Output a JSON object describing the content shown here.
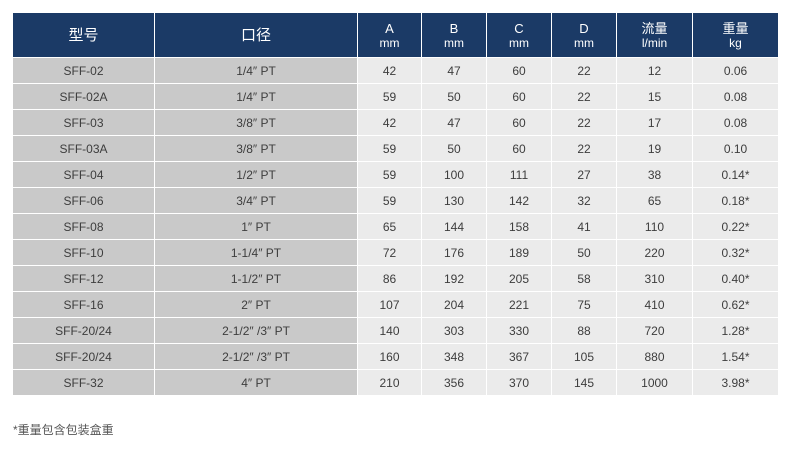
{
  "headers": {
    "model": "型号",
    "bore": "口径",
    "a": {
      "label": "A",
      "unit": "mm"
    },
    "b": {
      "label": "B",
      "unit": "mm"
    },
    "c": {
      "label": "C",
      "unit": "mm"
    },
    "d": {
      "label": "D",
      "unit": "mm"
    },
    "flow": {
      "label": "流量",
      "unit": "l/min"
    },
    "weight": {
      "label": "重量",
      "unit": "kg"
    }
  },
  "rows": [
    {
      "model": "SFF-02",
      "bore": "1/4″ PT",
      "a": "42",
      "b": "47",
      "c": "60",
      "d": "22",
      "flow": "12",
      "weight": "0.06"
    },
    {
      "model": "SFF-02A",
      "bore": "1/4″ PT",
      "a": "59",
      "b": "50",
      "c": "60",
      "d": "22",
      "flow": "15",
      "weight": "0.08"
    },
    {
      "model": "SFF-03",
      "bore": "3/8″ PT",
      "a": "42",
      "b": "47",
      "c": "60",
      "d": "22",
      "flow": "17",
      "weight": "0.08"
    },
    {
      "model": "SFF-03A",
      "bore": "3/8″ PT",
      "a": "59",
      "b": "50",
      "c": "60",
      "d": "22",
      "flow": "19",
      "weight": "0.10"
    },
    {
      "model": "SFF-04",
      "bore": "1/2″ PT",
      "a": "59",
      "b": "100",
      "c": "111",
      "d": "27",
      "flow": "38",
      "weight": "0.14*"
    },
    {
      "model": "SFF-06",
      "bore": "3/4″ PT",
      "a": "59",
      "b": "130",
      "c": "142",
      "d": "32",
      "flow": "65",
      "weight": "0.18*"
    },
    {
      "model": "SFF-08",
      "bore": "1″ PT",
      "a": "65",
      "b": "144",
      "c": "158",
      "d": "41",
      "flow": "110",
      "weight": "0.22*"
    },
    {
      "model": "SFF-10",
      "bore": "1-1/4″ PT",
      "a": "72",
      "b": "176",
      "c": "189",
      "d": "50",
      "flow": "220",
      "weight": "0.32*"
    },
    {
      "model": "SFF-12",
      "bore": "1-1/2″ PT",
      "a": "86",
      "b": "192",
      "c": "205",
      "d": "58",
      "flow": "310",
      "weight": "0.40*"
    },
    {
      "model": "SFF-16",
      "bore": "2″ PT",
      "a": "107",
      "b": "204",
      "c": "221",
      "d": "75",
      "flow": "410",
      "weight": "0.62*"
    },
    {
      "model": "SFF-20/24",
      "bore": "2-1/2″ /3″ PT",
      "a": "140",
      "b": "303",
      "c": "330",
      "d": "88",
      "flow": "720",
      "weight": "1.28*"
    },
    {
      "model": "SFF-20/24",
      "bore": "2-1/2″ /3″ PT",
      "a": "160",
      "b": "348",
      "c": "367",
      "d": "105",
      "flow": "880",
      "weight": "1.54*"
    },
    {
      "model": "SFF-32",
      "bore": "4″ PT",
      "a": "210",
      "b": "356",
      "c": "370",
      "d": "145",
      "flow": "1000",
      "weight": "3.98*"
    }
  ],
  "footnote": "*重量包含包装盒重",
  "colors": {
    "header_bg": "#1b3a66",
    "header_text": "#ffffff",
    "key_col_bg": "#c9c9c9",
    "value_col_bg": "#ebebeb"
  }
}
